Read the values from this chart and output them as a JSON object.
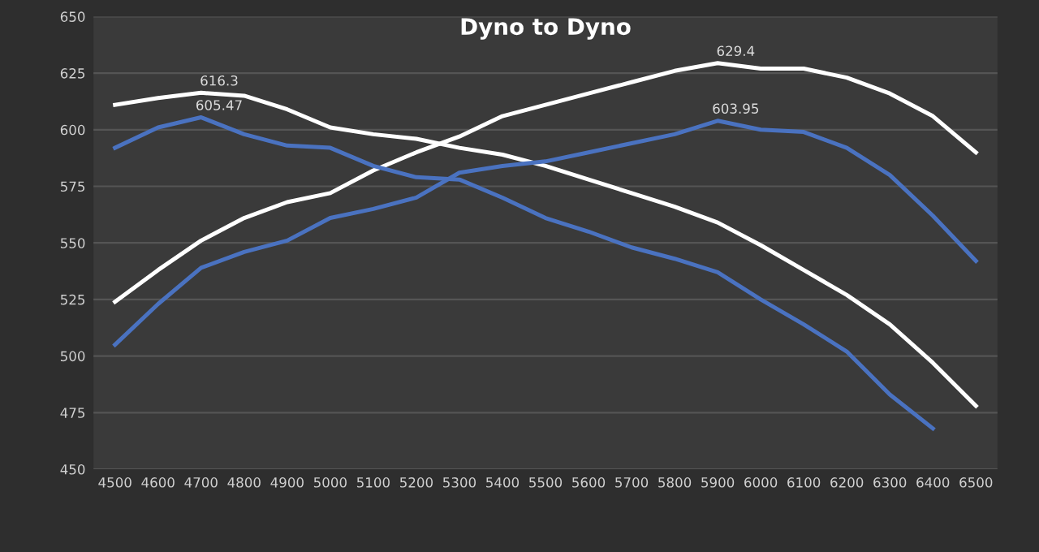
{
  "chart_data": {
    "type": "line",
    "title": "Dyno to Dyno",
    "categories": [
      "4500",
      "4600",
      "4700",
      "4800",
      "4900",
      "5000",
      "5100",
      "5200",
      "5300",
      "5400",
      "5500",
      "5600",
      "5700",
      "5800",
      "5900",
      "6000",
      "6100",
      "6200",
      "6300",
      "6400",
      "6500"
    ],
    "series": [
      {
        "color": "#ffffff",
        "values": [
          524,
          538,
          551,
          561,
          568,
          572,
          582,
          590,
          597,
          606,
          611,
          616,
          621,
          626,
          629.4,
          627,
          627,
          623,
          616,
          606,
          590
        ]
      },
      {
        "color": "#ffffff",
        "values": [
          611,
          614,
          616.3,
          615,
          609,
          601,
          598,
          596,
          592,
          589,
          584,
          578,
          572,
          566,
          559,
          549,
          538,
          527,
          514,
          497,
          478
        ]
      },
      {
        "color": "#4a72c0",
        "values": [
          505,
          523,
          539,
          546,
          551,
          561,
          565,
          570,
          581,
          584,
          586,
          590,
          594,
          598,
          603.95,
          600,
          599,
          592,
          580,
          562,
          542
        ]
      },
      {
        "color": "#4a72c0",
        "values": [
          592,
          601,
          605.47,
          598,
          593,
          592,
          584,
          579,
          578,
          570,
          561,
          555,
          548,
          543,
          537,
          525,
          514,
          502,
          483,
          468,
          null
        ]
      }
    ],
    "annotations": [
      {
        "text": "616.3",
        "x": "4700",
        "y": 616.3
      },
      {
        "text": "605.47",
        "x": "4700",
        "y": 605.47
      },
      {
        "text": "629.4",
        "x": "5900",
        "y": 629.4
      },
      {
        "text": "603.95",
        "x": "5900",
        "y": 603.95
      }
    ],
    "ylim": [
      450,
      650
    ],
    "yticks": [
      450,
      475,
      500,
      525,
      550,
      575,
      600,
      625,
      650
    ],
    "grid": "y",
    "marker": "none",
    "line_style": "solid"
  }
}
